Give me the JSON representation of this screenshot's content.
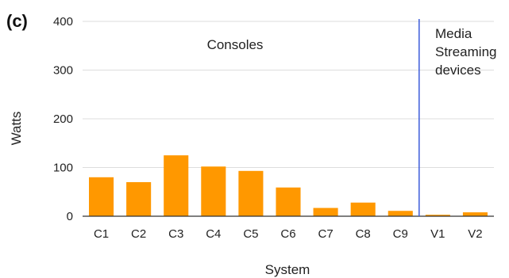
{
  "panel_label": "(c)",
  "chart_data": {
    "type": "bar",
    "xlabel": "System",
    "ylabel": "Watts",
    "ylim": [
      0,
      400
    ],
    "yticks": [
      0,
      100,
      200,
      300,
      400
    ],
    "grid": true,
    "categories": [
      "C1",
      "C2",
      "C3",
      "C4",
      "C5",
      "C6",
      "C7",
      "C8",
      "C9",
      "V1",
      "V2"
    ],
    "values": [
      80,
      70,
      125,
      102,
      93,
      59,
      17,
      28,
      11,
      3,
      8
    ],
    "bar_color": "#ff9800",
    "divider_color": "#3b5bdb",
    "divider_after_category": "C9",
    "annotations": [
      {
        "text": "Consoles"
      },
      {
        "text": "Media"
      },
      {
        "text": "Streaming"
      },
      {
        "text": "devices"
      }
    ]
  }
}
